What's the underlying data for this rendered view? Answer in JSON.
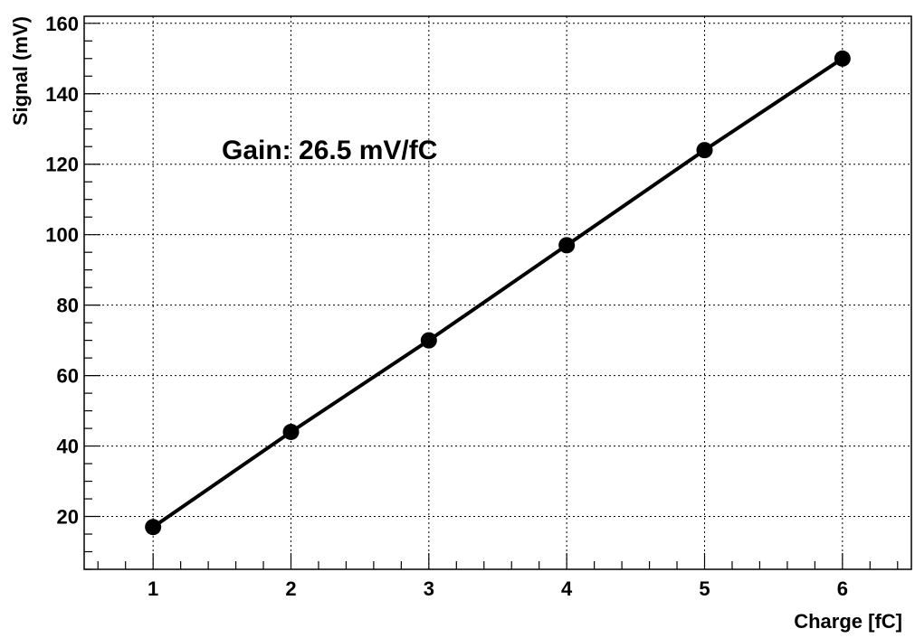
{
  "chart_data": {
    "type": "line",
    "title": "",
    "xlabel": "Charge [fC]",
    "ylabel": "Signal (mV)",
    "xlim": [
      0.5,
      6.5
    ],
    "ylim": [
      5,
      162
    ],
    "x_ticks": [
      1,
      2,
      3,
      4,
      5,
      6
    ],
    "y_ticks": [
      20,
      40,
      60,
      80,
      100,
      120,
      140,
      160
    ],
    "grid": true,
    "annotation": "Gain: 26.5 mV/fC",
    "series": [
      {
        "marker": "circle",
        "color": "#000000",
        "x": [
          1,
          2,
          3,
          4,
          5,
          6
        ],
        "y": [
          17,
          44,
          70,
          97,
          124,
          150
        ]
      }
    ]
  }
}
